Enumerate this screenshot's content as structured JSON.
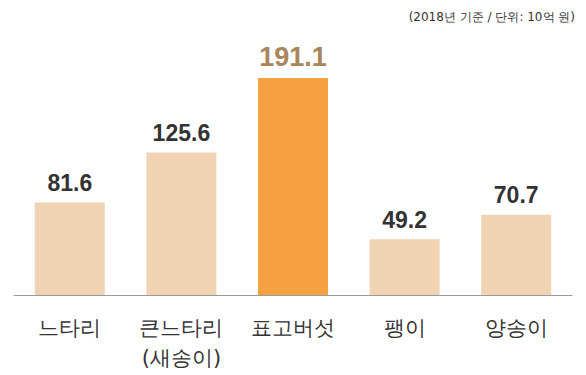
{
  "chart_data": {
    "type": "bar",
    "annotation": "(2018년 기준 / 단위: 10억 원)",
    "categories": [
      "느타리",
      "큰느타리\n(새송이)",
      "표고버섯",
      "팽이",
      "양송이"
    ],
    "values": [
      81.6,
      125.6,
      191.1,
      49.2,
      70.7
    ],
    "colors": [
      "#efd3b3",
      "#efd3b3",
      "#f6a242",
      "#efd3b3",
      "#efd3b3"
    ],
    "ylim": [
      0,
      200
    ],
    "data_labels": true,
    "tick_labels": "x",
    "grid": false
  }
}
